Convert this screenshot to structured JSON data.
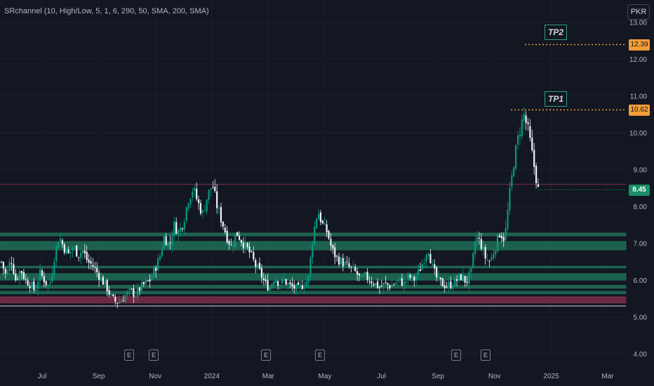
{
  "indicator": {
    "title": "SRchannel (10, High/Low, 5, 1, 6, 290, 50, SMA, 200, SMA)"
  },
  "currency": {
    "label": "PKR"
  },
  "chart_data": {
    "type": "candlestick",
    "y_range": [
      3.7,
      13.6
    ],
    "y_ticks": [
      4.0,
      5.0,
      6.0,
      7.0,
      8.0,
      9.0,
      10.0,
      11.0,
      12.0,
      13.0
    ],
    "y_tick_labels": [
      "4.00",
      "5.00",
      "6.00",
      "7.00",
      "8.00",
      "9.00",
      "10.00",
      "11.00",
      "12.00",
      "13.00"
    ],
    "x_labels": [
      "Jul",
      "Sep",
      "Nov",
      "2024",
      "Mar",
      "May",
      "Jul",
      "Sep",
      "Nov",
      "2025",
      "Mar"
    ],
    "price_path": [
      [
        6.5,
        6.1,
        6.6,
        6.0,
        6.3,
        6.0,
        5.9,
        5.7,
        6.2,
        6.0,
        5.8
      ],
      [
        6.6,
        7.2,
        6.9,
        6.7,
        6.9,
        6.7,
        6.8,
        6.5,
        6.4
      ],
      [
        6.2,
        6.0,
        5.8,
        5.5,
        5.4,
        5.45,
        5.6,
        5.7,
        5.6,
        5.8
      ],
      [
        5.9,
        6.0,
        6.3,
        6.6,
        7.2,
        6.9,
        7.5,
        7.3,
        7.6
      ],
      [
        8.2,
        8.5,
        8.1,
        7.8,
        8.3,
        8.6,
        8.0,
        7.6,
        7.2,
        6.9,
        7.3
      ],
      [
        7.1,
        6.9,
        6.7,
        6.4,
        6.2,
        5.9,
        5.8
      ],
      [
        6.1,
        5.9,
        6.0,
        5.85,
        5.8,
        5.75,
        5.9
      ],
      [
        6.0,
        7.2,
        7.9,
        7.5,
        7.3,
        6.8,
        6.6,
        6.5,
        6.4
      ],
      [
        6.3,
        6.2,
        6.0,
        6.1,
        6.0,
        5.9,
        5.8,
        5.9
      ],
      [
        5.85,
        5.9,
        6.0,
        5.9,
        6.1,
        6.0,
        6.2,
        6.5,
        6.9,
        6.3
      ],
      [
        6.0,
        5.9,
        5.85,
        5.9,
        6.0,
        6.1,
        5.95
      ],
      [
        6.2,
        7.2,
        7.0,
        6.6,
        6.5,
        6.9,
        7.3,
        7.1
      ],
      [
        8.3,
        9.3,
        10.0,
        10.5,
        10.0,
        9.2,
        8.45
      ]
    ],
    "levels": [
      {
        "low": 7.2,
        "high": 7.28,
        "color": "#1f6e55"
      },
      {
        "low": 6.82,
        "high": 7.05,
        "color": "#1f6e55"
      },
      {
        "low": 6.33,
        "high": 6.38,
        "color": "#1f6e55"
      },
      {
        "low": 6.0,
        "high": 6.18,
        "color": "#1f6e55"
      },
      {
        "low": 5.78,
        "high": 5.86,
        "color": "#1f6e55"
      },
      {
        "low": 5.63,
        "high": 5.7,
        "color": "#1f6e55"
      },
      {
        "low": 5.38,
        "high": 5.55,
        "color": "#7d2d46"
      }
    ],
    "support_line": 5.3,
    "resistance_line": 8.6,
    "last_price": 8.45,
    "last_price_label": "8.45",
    "targets": [
      {
        "name": "TP1",
        "price": 10.62,
        "price_label": "10.62"
      },
      {
        "name": "TP2",
        "price": 12.39,
        "price_label": "12.39"
      }
    ],
    "earnings_mark": "E",
    "colors": {
      "up": "#089981",
      "down": "#f0f3fa",
      "level_green": "#1f6e55",
      "level_red": "#7d2d46",
      "target": "#f29d38",
      "last_price": "#1b8f6a"
    }
  }
}
